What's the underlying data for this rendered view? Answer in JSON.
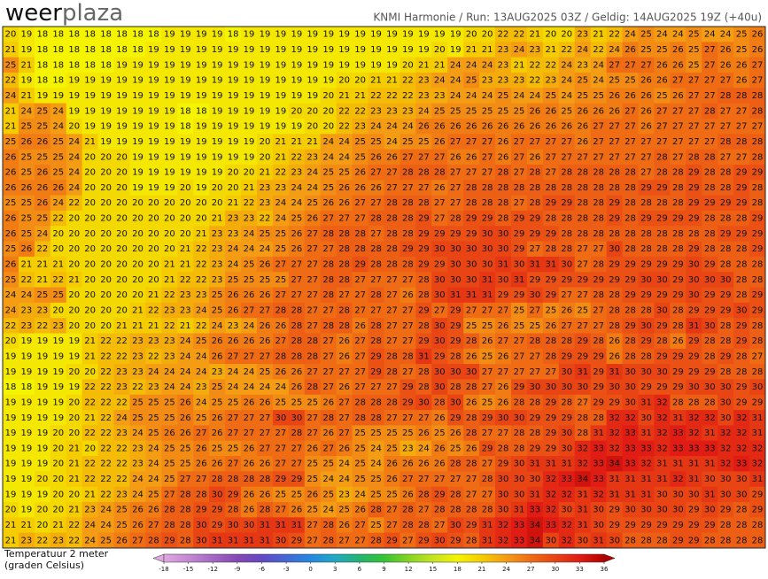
{
  "header": {
    "logo": [
      "weer",
      "plaza"
    ],
    "title": "KNMI Harmonie / Run: 13AUG2025 03Z / Geldig: 14AUG2025 19Z (+40u)"
  },
  "legend": {
    "label": [
      "Temperatuur 2 meter",
      "(graden Celsius)"
    ],
    "ticks": [
      -18,
      -15,
      -12,
      -9,
      -6,
      -3,
      0,
      3,
      6,
      9,
      12,
      15,
      18,
      21,
      24,
      27,
      30,
      33,
      36
    ],
    "colors": [
      "#e0a8e0",
      "#c488d4",
      "#a468c4",
      "#8448b4",
      "#6448c4",
      "#4468d4",
      "#2488e0",
      "#20a8c4",
      "#24b470",
      "#34c434",
      "#84d424",
      "#c4e420",
      "#f4f400",
      "#f4cc00",
      "#f49c14",
      "#f06c14",
      "#e84414",
      "#e01c14",
      "#b40000"
    ]
  },
  "grid": [
    [
      20,
      19,
      18,
      18,
      18,
      18,
      18,
      18,
      18,
      18,
      19,
      19,
      19,
      19,
      18,
      19,
      19,
      19,
      19,
      19,
      19,
      19,
      19,
      19,
      19,
      19,
      19,
      19,
      19,
      20,
      20,
      22,
      22,
      21,
      20,
      20,
      23,
      21,
      22,
      24,
      25,
      24,
      24,
      25,
      24,
      24,
      25,
      26
    ],
    [
      21,
      19,
      18,
      18,
      18,
      18,
      18,
      18,
      18,
      19,
      19,
      19,
      19,
      19,
      19,
      19,
      19,
      19,
      19,
      19,
      19,
      19,
      19,
      19,
      19,
      19,
      19,
      20,
      19,
      21,
      21,
      23,
      24,
      23,
      21,
      22,
      24,
      22,
      24,
      26,
      25,
      25,
      26,
      25,
      27,
      26,
      25,
      26
    ],
    [
      25,
      21,
      18,
      18,
      18,
      18,
      18,
      19,
      19,
      19,
      19,
      19,
      19,
      19,
      19,
      19,
      19,
      19,
      19,
      19,
      19,
      19,
      19,
      19,
      19,
      20,
      21,
      21,
      24,
      24,
      24,
      23,
      21,
      22,
      22,
      24,
      23,
      24,
      27,
      27,
      27,
      26,
      26,
      25,
      27,
      26,
      26,
      27
    ],
    [
      22,
      19,
      18,
      18,
      19,
      19,
      19,
      19,
      19,
      19,
      19,
      19,
      19,
      19,
      19,
      19,
      19,
      19,
      19,
      19,
      19,
      20,
      20,
      21,
      21,
      22,
      23,
      24,
      24,
      25,
      23,
      23,
      23,
      22,
      23,
      24,
      25,
      24,
      25,
      25,
      26,
      26,
      27,
      27,
      27,
      27,
      26,
      27
    ],
    [
      24,
      21,
      19,
      19,
      19,
      19,
      19,
      19,
      19,
      19,
      19,
      19,
      19,
      19,
      19,
      19,
      19,
      19,
      19,
      19,
      20,
      21,
      21,
      22,
      22,
      22,
      23,
      23,
      24,
      24,
      24,
      25,
      24,
      24,
      25,
      24,
      25,
      25,
      26,
      26,
      26,
      25,
      26,
      27,
      27,
      28,
      28,
      28
    ],
    [
      21,
      24,
      25,
      24,
      19,
      19,
      19,
      19,
      19,
      19,
      19,
      18,
      18,
      19,
      19,
      19,
      19,
      19,
      20,
      20,
      20,
      22,
      22,
      23,
      23,
      23,
      24,
      25,
      25,
      25,
      25,
      25,
      25,
      26,
      26,
      25,
      26,
      26,
      26,
      27,
      26,
      27,
      27,
      27,
      28,
      27,
      27,
      28
    ],
    [
      21,
      25,
      25,
      24,
      20,
      19,
      19,
      19,
      19,
      19,
      19,
      18,
      19,
      19,
      19,
      19,
      19,
      19,
      19,
      20,
      20,
      22,
      23,
      24,
      24,
      24,
      26,
      26,
      26,
      26,
      26,
      26,
      26,
      26,
      26,
      26,
      26,
      27,
      27,
      27,
      26,
      27,
      27,
      27,
      27,
      27,
      27,
      27
    ],
    [
      25,
      26,
      26,
      25,
      24,
      21,
      19,
      19,
      19,
      19,
      19,
      19,
      19,
      19,
      19,
      19,
      20,
      21,
      21,
      21,
      24,
      24,
      25,
      25,
      24,
      25,
      25,
      26,
      27,
      27,
      27,
      26,
      27,
      27,
      27,
      27,
      26,
      27,
      27,
      27,
      27,
      27,
      27,
      27,
      27,
      28,
      28,
      28
    ],
    [
      26,
      25,
      25,
      25,
      24,
      20,
      20,
      20,
      19,
      19,
      19,
      19,
      19,
      19,
      19,
      19,
      20,
      21,
      22,
      23,
      24,
      24,
      25,
      26,
      26,
      27,
      27,
      27,
      26,
      26,
      27,
      26,
      27,
      26,
      27,
      27,
      27,
      27,
      27,
      27,
      27,
      28,
      27,
      28,
      28,
      27,
      27,
      28
    ],
    [
      26,
      25,
      26,
      25,
      24,
      20,
      20,
      20,
      19,
      19,
      19,
      19,
      19,
      19,
      20,
      20,
      21,
      22,
      23,
      24,
      25,
      25,
      26,
      27,
      27,
      28,
      28,
      28,
      27,
      27,
      27,
      28,
      27,
      28,
      27,
      28,
      28,
      28,
      28,
      28,
      27,
      28,
      28,
      29,
      28,
      28,
      29,
      29
    ],
    [
      26,
      26,
      26,
      26,
      24,
      20,
      20,
      20,
      19,
      19,
      19,
      20,
      19,
      20,
      20,
      21,
      23,
      23,
      24,
      24,
      25,
      26,
      26,
      26,
      27,
      27,
      27,
      26,
      27,
      28,
      28,
      28,
      28,
      28,
      28,
      28,
      28,
      28,
      28,
      28,
      29,
      29,
      28,
      29,
      28,
      28,
      29,
      28
    ],
    [
      25,
      25,
      26,
      24,
      22,
      20,
      20,
      20,
      20,
      20,
      20,
      20,
      20,
      20,
      21,
      22,
      23,
      24,
      24,
      25,
      26,
      26,
      27,
      27,
      28,
      28,
      28,
      27,
      27,
      28,
      28,
      28,
      27,
      28,
      29,
      29,
      28,
      28,
      29,
      28,
      28,
      28,
      28,
      29,
      29,
      29,
      29,
      28
    ],
    [
      26,
      25,
      25,
      22,
      20,
      20,
      20,
      20,
      20,
      20,
      20,
      20,
      20,
      21,
      23,
      23,
      22,
      24,
      25,
      26,
      27,
      27,
      27,
      28,
      28,
      28,
      29,
      27,
      28,
      29,
      29,
      28,
      29,
      29,
      28,
      28,
      28,
      28,
      29,
      28,
      29,
      29,
      29,
      29,
      28,
      28,
      28,
      29
    ],
    [
      26,
      25,
      24,
      20,
      20,
      20,
      20,
      20,
      20,
      20,
      20,
      20,
      21,
      23,
      23,
      24,
      25,
      25,
      26,
      27,
      28,
      28,
      28,
      27,
      28,
      28,
      29,
      29,
      29,
      29,
      30,
      30,
      29,
      29,
      29,
      28,
      28,
      28,
      28,
      28,
      28,
      28,
      28,
      28,
      28,
      29,
      29,
      29
    ],
    [
      25,
      26,
      22,
      20,
      20,
      20,
      20,
      20,
      20,
      20,
      20,
      21,
      22,
      23,
      24,
      24,
      24,
      25,
      26,
      27,
      27,
      28,
      28,
      28,
      28,
      29,
      29,
      30,
      30,
      30,
      30,
      30,
      29,
      27,
      28,
      28,
      27,
      27,
      30,
      28,
      28,
      28,
      28,
      29,
      28,
      28,
      28,
      29
    ],
    [
      26,
      21,
      21,
      21,
      20,
      20,
      20,
      20,
      20,
      20,
      21,
      21,
      22,
      23,
      24,
      25,
      26,
      27,
      27,
      27,
      28,
      28,
      29,
      28,
      28,
      28,
      29,
      29,
      30,
      30,
      30,
      31,
      30,
      31,
      31,
      30,
      27,
      28,
      29,
      29,
      29,
      29,
      29,
      30,
      29,
      28,
      28,
      28
    ],
    [
      25,
      22,
      21,
      22,
      21,
      20,
      20,
      20,
      20,
      20,
      21,
      22,
      22,
      23,
      25,
      25,
      25,
      25,
      27,
      27,
      28,
      28,
      27,
      27,
      27,
      27,
      28,
      30,
      30,
      30,
      31,
      30,
      31,
      29,
      29,
      29,
      29,
      29,
      29,
      29,
      30,
      30,
      29,
      30,
      30,
      30,
      28,
      28
    ],
    [
      24,
      24,
      25,
      25,
      20,
      20,
      20,
      20,
      20,
      21,
      22,
      23,
      23,
      25,
      26,
      26,
      26,
      27,
      27,
      27,
      28,
      27,
      27,
      28,
      27,
      26,
      28,
      30,
      31,
      31,
      31,
      29,
      29,
      30,
      29,
      27,
      27,
      28,
      28,
      29,
      29,
      29,
      29,
      30,
      29,
      29,
      28,
      29
    ],
    [
      24,
      23,
      23,
      20,
      20,
      20,
      20,
      20,
      21,
      22,
      23,
      23,
      24,
      25,
      26,
      27,
      27,
      28,
      28,
      27,
      27,
      28,
      27,
      27,
      27,
      27,
      29,
      27,
      29,
      27,
      27,
      27,
      25,
      27,
      25,
      26,
      25,
      27,
      28,
      28,
      28,
      30,
      28,
      29,
      29,
      29,
      30,
      29
    ],
    [
      22,
      23,
      22,
      23,
      20,
      20,
      20,
      21,
      21,
      21,
      22,
      21,
      22,
      24,
      23,
      24,
      26,
      26,
      28,
      27,
      28,
      28,
      26,
      28,
      27,
      27,
      28,
      30,
      29,
      25,
      25,
      26,
      25,
      25,
      26,
      27,
      27,
      27,
      28,
      29,
      30,
      29,
      28,
      31,
      30,
      28,
      29,
      28
    ],
    [
      20,
      19,
      19,
      19,
      19,
      21,
      22,
      22,
      23,
      23,
      23,
      24,
      25,
      26,
      26,
      26,
      26,
      27,
      28,
      28,
      27,
      26,
      27,
      28,
      27,
      27,
      29,
      30,
      29,
      28,
      26,
      27,
      27,
      28,
      28,
      28,
      29,
      28,
      26,
      28,
      29,
      28,
      26,
      29,
      28,
      28,
      29,
      28
    ],
    [
      19,
      19,
      19,
      19,
      19,
      21,
      22,
      22,
      23,
      22,
      23,
      24,
      24,
      26,
      27,
      27,
      27,
      28,
      28,
      28,
      27,
      26,
      27,
      29,
      28,
      28,
      31,
      29,
      28,
      26,
      25,
      26,
      27,
      27,
      28,
      29,
      29,
      29,
      26,
      28,
      28,
      29,
      29,
      29,
      28,
      29,
      28,
      27
    ],
    [
      19,
      19,
      19,
      19,
      20,
      20,
      22,
      23,
      23,
      24,
      24,
      24,
      24,
      23,
      24,
      24,
      25,
      26,
      26,
      27,
      27,
      27,
      27,
      29,
      28,
      27,
      28,
      30,
      30,
      30,
      27,
      27,
      27,
      27,
      27,
      30,
      31,
      29,
      31,
      30,
      30,
      30,
      29,
      29,
      29,
      28,
      28,
      28
    ],
    [
      18,
      18,
      19,
      19,
      19,
      22,
      22,
      23,
      22,
      23,
      24,
      24,
      23,
      25,
      24,
      24,
      24,
      24,
      26,
      28,
      27,
      26,
      27,
      27,
      27,
      29,
      28,
      30,
      28,
      28,
      27,
      26,
      29,
      30,
      30,
      30,
      30,
      29,
      30,
      30,
      29,
      29,
      29,
      30,
      30,
      30,
      29,
      30
    ],
    [
      19,
      19,
      19,
      19,
      20,
      22,
      22,
      22,
      25,
      25,
      25,
      26,
      24,
      25,
      25,
      26,
      26,
      25,
      25,
      25,
      26,
      27,
      28,
      28,
      28,
      29,
      30,
      28,
      30,
      26,
      25,
      26,
      28,
      28,
      29,
      28,
      27,
      29,
      29,
      30,
      31,
      32,
      28,
      28,
      28,
      30,
      29,
      29
    ],
    [
      19,
      19,
      19,
      19,
      20,
      21,
      22,
      24,
      25,
      25,
      25,
      26,
      25,
      26,
      27,
      27,
      27,
      30,
      30,
      27,
      28,
      27,
      28,
      28,
      27,
      27,
      27,
      26,
      29,
      28,
      29,
      30,
      30,
      29,
      29,
      29,
      28,
      28,
      32,
      32,
      30,
      32,
      31,
      32,
      32,
      30,
      32,
      31
    ],
    [
      19,
      19,
      19,
      20,
      20,
      22,
      22,
      23,
      24,
      25,
      26,
      26,
      27,
      26,
      27,
      27,
      27,
      27,
      28,
      27,
      26,
      27,
      25,
      25,
      25,
      25,
      26,
      25,
      26,
      28,
      27,
      27,
      28,
      28,
      29,
      30,
      28,
      31,
      32,
      33,
      31,
      32,
      33,
      32,
      31,
      32,
      32,
      31
    ],
    [
      19,
      19,
      19,
      20,
      21,
      20,
      22,
      22,
      23,
      24,
      25,
      25,
      26,
      25,
      25,
      26,
      27,
      27,
      27,
      26,
      27,
      26,
      25,
      24,
      25,
      23,
      24,
      26,
      25,
      26,
      29,
      28,
      28,
      29,
      29,
      30,
      32,
      33,
      32,
      33,
      33,
      32,
      33,
      33,
      33,
      32,
      32,
      32
    ],
    [
      19,
      19,
      19,
      20,
      21,
      22,
      22,
      22,
      23,
      24,
      25,
      25,
      26,
      26,
      27,
      26,
      26,
      27,
      27,
      25,
      25,
      24,
      25,
      24,
      26,
      26,
      26,
      26,
      28,
      28,
      27,
      29,
      30,
      31,
      31,
      31,
      32,
      33,
      34,
      33,
      32,
      31,
      31,
      31,
      31,
      32,
      33,
      32
    ],
    [
      19,
      19,
      20,
      20,
      21,
      22,
      22,
      22,
      24,
      24,
      25,
      27,
      27,
      28,
      28,
      28,
      28,
      29,
      29,
      25,
      24,
      24,
      25,
      25,
      26,
      27,
      27,
      27,
      27,
      27,
      28,
      30,
      30,
      30,
      32,
      33,
      34,
      33,
      31,
      31,
      31,
      31,
      32,
      31,
      30,
      30,
      30,
      31
    ],
    [
      19,
      19,
      19,
      20,
      20,
      21,
      22,
      23,
      24,
      25,
      27,
      28,
      28,
      30,
      29,
      26,
      26,
      25,
      25,
      26,
      25,
      23,
      24,
      25,
      25,
      26,
      28,
      29,
      28,
      27,
      27,
      30,
      30,
      31,
      32,
      32,
      31,
      32,
      31,
      31,
      31,
      30,
      30,
      30,
      31,
      30,
      30,
      29
    ],
    [
      20,
      19,
      20,
      20,
      21,
      23,
      24,
      25,
      26,
      26,
      28,
      28,
      29,
      29,
      28,
      26,
      28,
      27,
      26,
      25,
      24,
      25,
      26,
      28,
      27,
      28,
      27,
      28,
      28,
      28,
      28,
      30,
      31,
      33,
      32,
      30,
      31,
      30,
      29,
      30,
      30,
      30,
      30,
      29,
      30,
      29,
      28,
      29
    ],
    [
      21,
      21,
      20,
      21,
      22,
      24,
      24,
      25,
      26,
      27,
      28,
      28,
      30,
      29,
      30,
      30,
      31,
      31,
      31,
      27,
      28,
      26,
      27,
      25,
      27,
      28,
      28,
      27,
      30,
      29,
      31,
      32,
      33,
      34,
      33,
      32,
      31,
      30,
      29,
      29,
      29,
      29,
      29,
      29,
      29,
      28,
      28,
      28
    ],
    [
      21,
      23,
      22,
      23,
      22,
      24,
      25,
      26,
      27,
      28,
      29,
      28,
      30,
      31,
      31,
      31,
      31,
      30,
      29,
      27,
      28,
      27,
      27,
      28,
      29,
      27,
      29,
      30,
      29,
      28,
      31,
      32,
      33,
      34,
      30,
      32,
      30,
      31,
      30,
      28,
      28,
      28,
      29,
      29,
      28,
      28,
      28,
      28
    ]
  ]
}
